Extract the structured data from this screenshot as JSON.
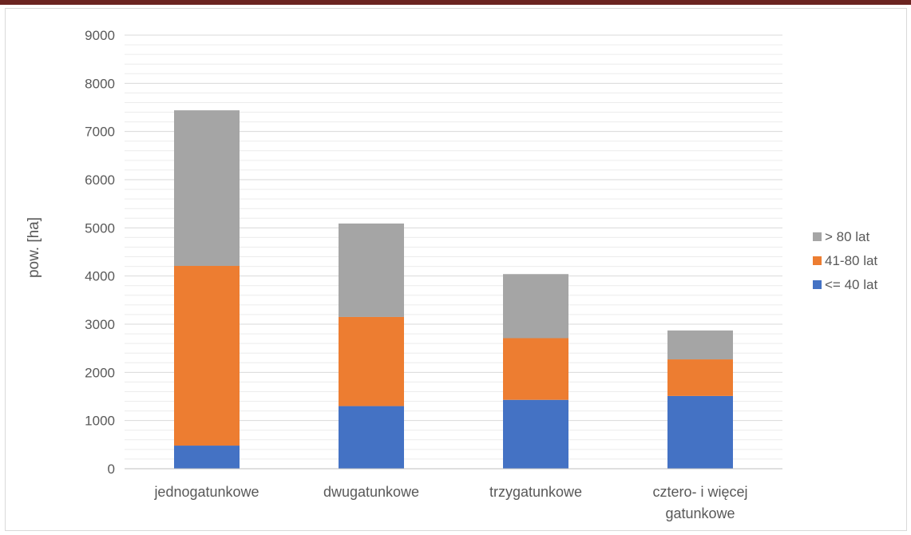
{
  "chart_data": {
    "type": "bar",
    "stacked": true,
    "categories": [
      "jednogatunkowe",
      "dwugatunkowe",
      "trzygatunkowe",
      "cztero- i więcej gatunkowe"
    ],
    "category_lines": [
      [
        "jednogatunkowe"
      ],
      [
        "dwugatunkowe"
      ],
      [
        "trzygatunkowe"
      ],
      [
        "cztero- i więcej",
        "gatunkowe"
      ]
    ],
    "series": [
      {
        "name": "<= 40 lat",
        "color": "#4472c4",
        "values": [
          480,
          1300,
          1430,
          1510
        ]
      },
      {
        "name": "41-80 lat",
        "color": "#ed7d31",
        "values": [
          3730,
          1850,
          1280,
          760
        ]
      },
      {
        "name": "> 80 lat",
        "color": "#a5a5a5",
        "values": [
          3230,
          1940,
          1330,
          600
        ]
      }
    ],
    "legend_order": [
      "> 80 lat",
      "41-80 lat",
      "<= 40 lat"
    ],
    "xlabel": "",
    "ylabel": "pow. [ha]",
    "ylim": [
      0,
      9000
    ],
    "yticks": [
      0,
      1000,
      2000,
      3000,
      4000,
      5000,
      6000,
      7000,
      8000,
      9000
    ],
    "grid": "major and minor horizontal",
    "legend_position": "right"
  }
}
